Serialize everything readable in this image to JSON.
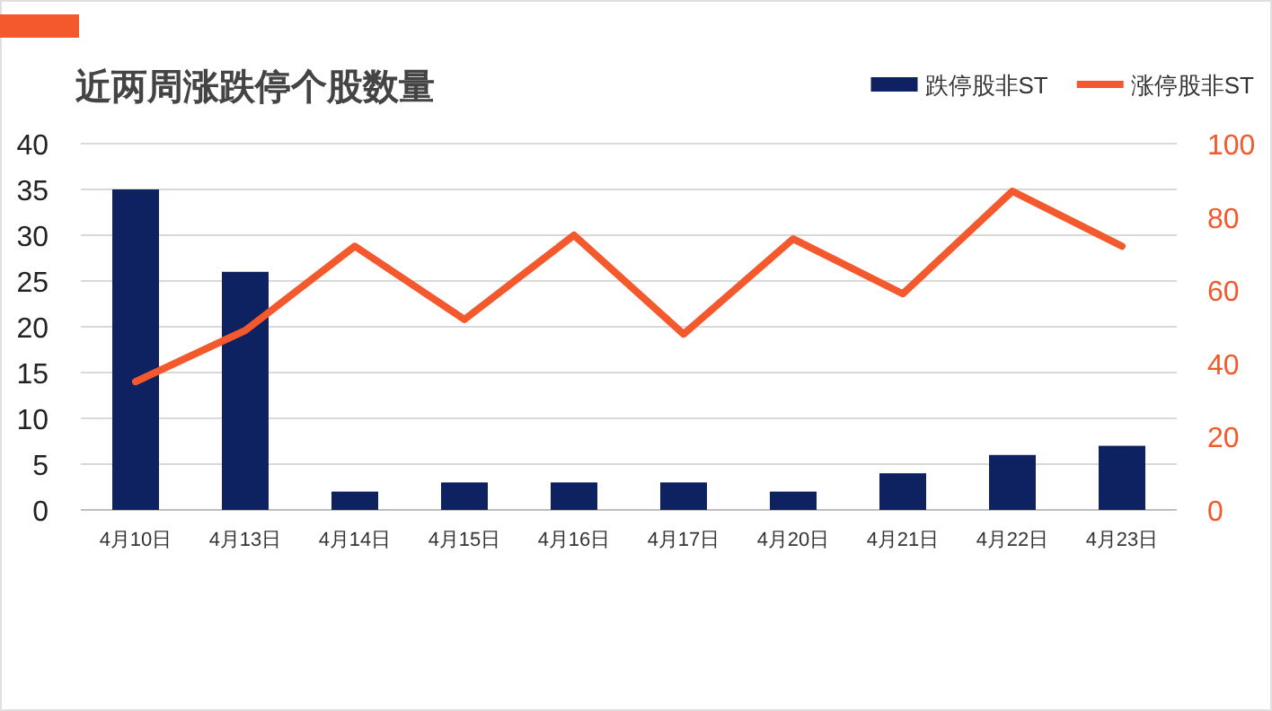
{
  "chart_data": {
    "type": "bar",
    "title": "近两周涨跌停个股数量",
    "categories": [
      "4月10日",
      "4月13日",
      "4月14日",
      "4月15日",
      "4月16日",
      "4月17日",
      "4月20日",
      "4月21日",
      "4月22日",
      "4月23日"
    ],
    "series": [
      {
        "name": "跌停股非ST",
        "color": "#0e2160",
        "values": [
          35,
          26,
          2,
          3,
          3,
          3,
          2,
          4,
          6,
          7
        ]
      },
      {
        "name": "涨停股非ST",
        "type": "line",
        "axis": "y2",
        "color": "#f4592d",
        "values": [
          35,
          49,
          72,
          52,
          75,
          48,
          74,
          59,
          87,
          72
        ]
      }
    ],
    "ylim": [
      0,
      40
    ],
    "yticks": [
      0,
      5,
      10,
      15,
      20,
      25,
      30,
      35,
      40
    ],
    "y2lim": [
      0,
      100
    ],
    "y2ticks": [
      0,
      20,
      40,
      60,
      80,
      100
    ],
    "grid": "y",
    "legend": "top right"
  }
}
